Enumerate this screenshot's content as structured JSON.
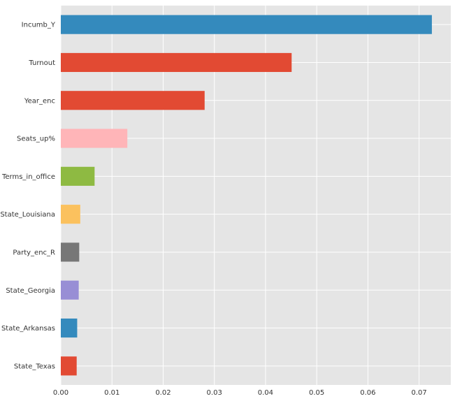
{
  "chart_data": {
    "type": "bar",
    "orientation": "horizontal",
    "categories": [
      "Incumb_Y",
      "Turnout",
      "Year_enc",
      "Seats_up%",
      "Terms_in_office",
      "State_Louisiana",
      "Party_enc_R",
      "State_Georgia",
      "State_Arkansas",
      "State_Texas"
    ],
    "values": [
      0.0725,
      0.0451,
      0.0281,
      0.013,
      0.0066,
      0.0038,
      0.0036,
      0.0035,
      0.0032,
      0.0031
    ],
    "colors": [
      "#348abd",
      "#e24a33",
      "#e24a33",
      "#ffb5b8",
      "#8eba42",
      "#fbc15e",
      "#777777",
      "#988ed5",
      "#348abd",
      "#e24a33"
    ],
    "x_ticks": [
      "0.00",
      "0.01",
      "0.02",
      "0.03",
      "0.04",
      "0.05",
      "0.06",
      "0.07"
    ],
    "xlim": [
      0,
      0.0762
    ],
    "title": "",
    "xlabel": "",
    "ylabel": "",
    "grid": true,
    "background": "#e5e5e5",
    "grid_color": "#ffffff"
  }
}
